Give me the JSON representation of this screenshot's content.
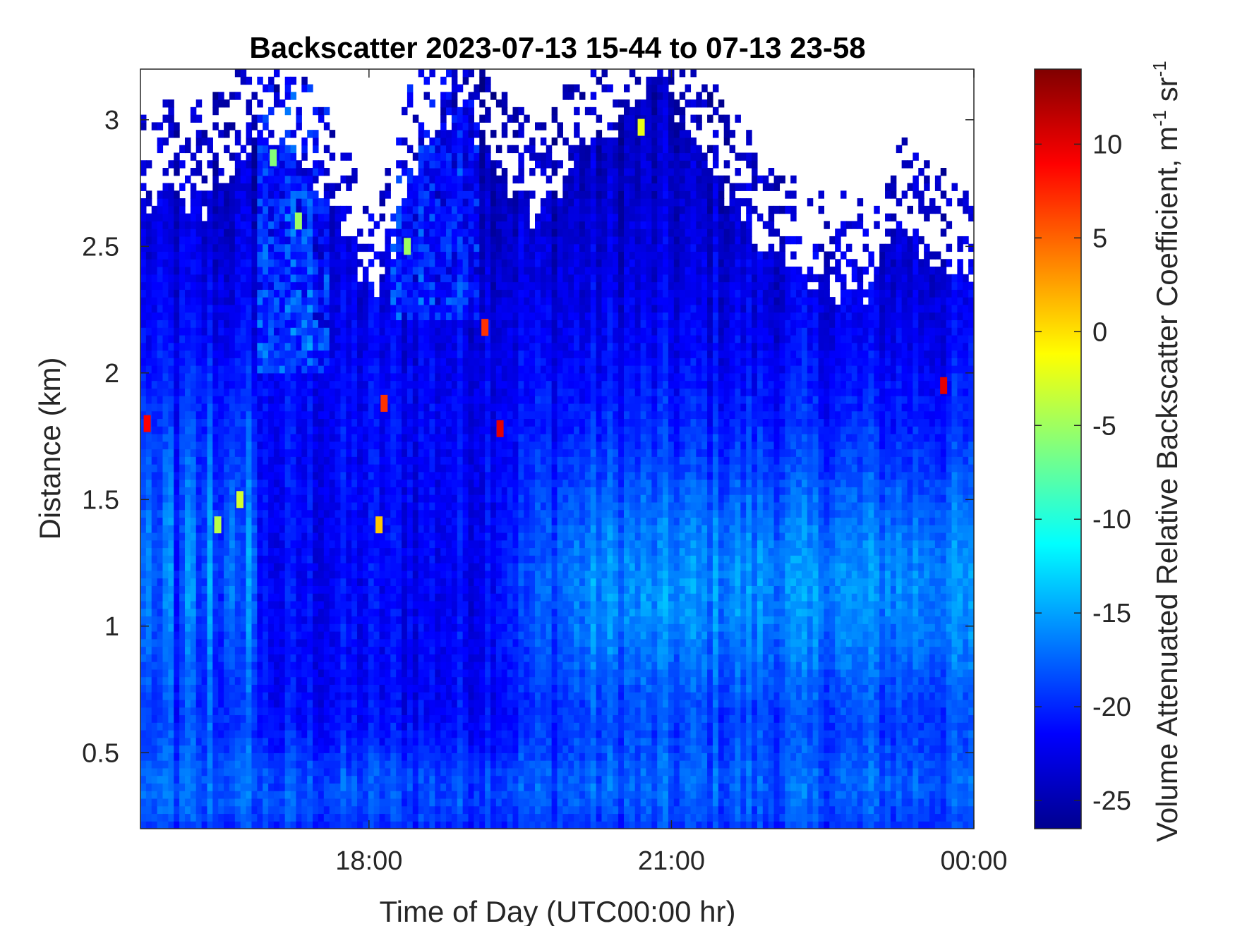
{
  "chart_data": {
    "type": "heatmap",
    "title": "Backscatter 2023-07-13 15-44 to 07-13 23-58",
    "xlabel": "Time of Day (UTC00:00 hr)",
    "ylabel": "Distance (km)",
    "xlim_hours": [
      15.733,
      24.0
    ],
    "ylim_km": [
      0.2,
      3.2
    ],
    "xticks": [
      {
        "value": 18,
        "label": "18:00"
      },
      {
        "value": 21,
        "label": "21:00"
      },
      {
        "value": 24,
        "label": "00:00"
      }
    ],
    "yticks": [
      {
        "value": 0.5,
        "label": "0.5"
      },
      {
        "value": 1,
        "label": "1"
      },
      {
        "value": 1.5,
        "label": "1.5"
      },
      {
        "value": 2,
        "label": "2"
      },
      {
        "value": 2.5,
        "label": "2.5"
      },
      {
        "value": 3,
        "label": "3"
      }
    ],
    "colorbar": {
      "label_main": "Volume Attenuated Relative Backscatter Coefficient, m",
      "label_exp1": "-1",
      "label_mid": " sr",
      "label_exp2": "-1",
      "colormap": "jet",
      "clim": [
        -26.5,
        14
      ],
      "ticks": [
        -25,
        -20,
        -15,
        -10,
        -5,
        0,
        5,
        10
      ]
    },
    "cloud_top_km": [
      {
        "t": 15.73,
        "h": 2.65
      },
      {
        "t": 16.0,
        "h": 2.7
      },
      {
        "t": 16.4,
        "h": 2.65
      },
      {
        "t": 16.9,
        "h": 2.95
      },
      {
        "t": 17.3,
        "h": 2.85
      },
      {
        "t": 17.7,
        "h": 2.55
      },
      {
        "t": 18.1,
        "h": 2.3
      },
      {
        "t": 18.5,
        "h": 2.85
      },
      {
        "t": 18.9,
        "h": 3.1
      },
      {
        "t": 19.3,
        "h": 2.75
      },
      {
        "t": 19.7,
        "h": 2.6
      },
      {
        "t": 20.1,
        "h": 2.85
      },
      {
        "t": 20.5,
        "h": 3.0
      },
      {
        "t": 20.9,
        "h": 3.15
      },
      {
        "t": 21.3,
        "h": 2.9
      },
      {
        "t": 21.7,
        "h": 2.6
      },
      {
        "t": 22.1,
        "h": 2.45
      },
      {
        "t": 22.5,
        "h": 2.35
      },
      {
        "t": 22.9,
        "h": 2.3
      },
      {
        "t": 23.3,
        "h": 2.55
      },
      {
        "t": 23.7,
        "h": 2.4
      },
      {
        "t": 24.0,
        "h": 2.3
      }
    ],
    "hot_spots": [
      {
        "t": 15.8,
        "h": 1.8,
        "v": 9
      },
      {
        "t": 18.15,
        "h": 1.88,
        "v": 7
      },
      {
        "t": 18.1,
        "h": 1.4,
        "v": 1
      },
      {
        "t": 19.15,
        "h": 2.18,
        "v": 7
      },
      {
        "t": 19.3,
        "h": 1.78,
        "v": 10
      },
      {
        "t": 23.7,
        "h": 1.95,
        "v": 10
      },
      {
        "t": 20.7,
        "h": 2.97,
        "v": -2
      },
      {
        "t": 18.38,
        "h": 2.5,
        "v": -5
      },
      {
        "t": 17.05,
        "h": 2.85,
        "v": -6
      },
      {
        "t": 17.3,
        "h": 2.6,
        "v": -5
      },
      {
        "t": 16.5,
        "h": 1.4,
        "v": -4
      },
      {
        "t": 16.72,
        "h": 1.5,
        "v": -3
      }
    ]
  }
}
